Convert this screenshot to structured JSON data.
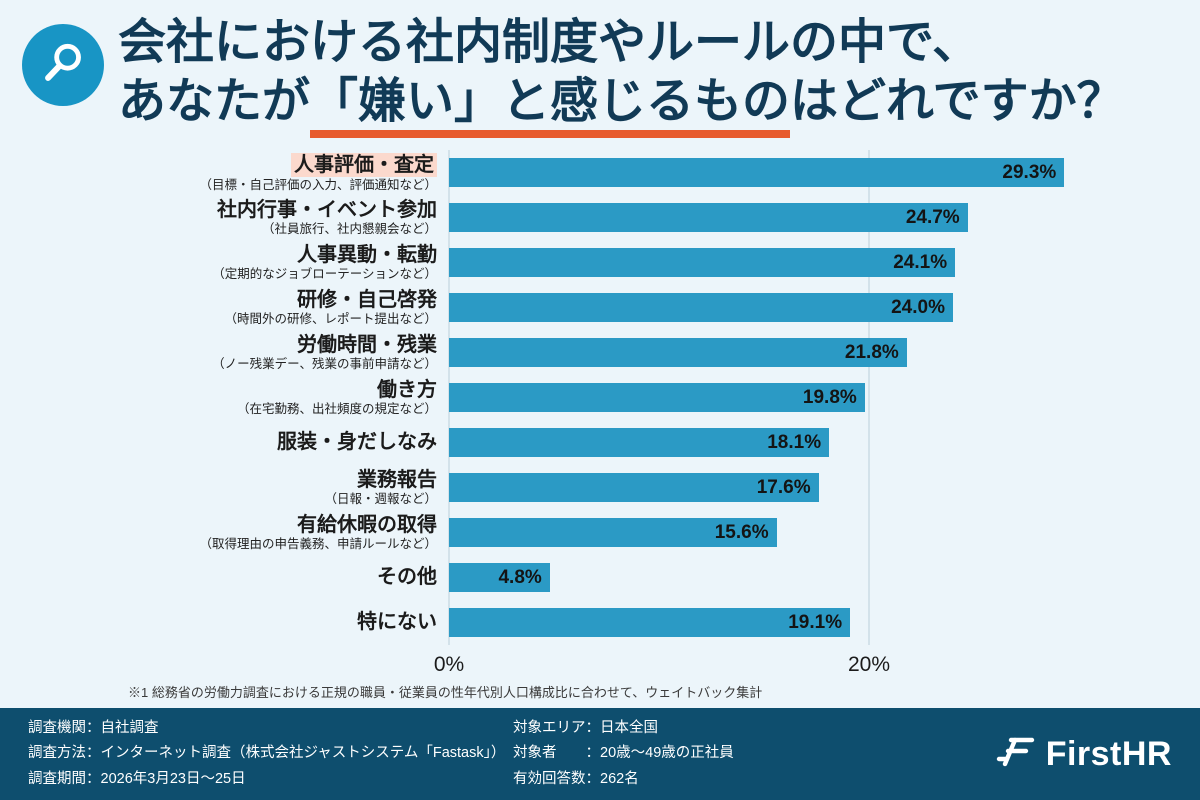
{
  "header": {
    "title_line1": "会社における社内制度やルールの中で、",
    "title_line2_prefix": "あなたが",
    "title_line2_emphasis": "「嫌い」と感じるもの",
    "title_line2_suffix": "はどれですか？"
  },
  "chart_data": {
    "type": "bar",
    "orientation": "horizontal",
    "title": "会社における社内制度やルールの中で、あなたが「嫌い」と感じるものはどれですか？",
    "categories": [
      "人事評価・査定",
      "社内行事・イベント参加",
      "人事異動・転勤",
      "研修・自己啓発",
      "労働時間・残業",
      "働き方",
      "服装・身だしなみ",
      "業務報告",
      "有給休暇の取得",
      "その他",
      "特にない"
    ],
    "sublabels": [
      "（目標・自己評価の入力、評価通知など）",
      "（社員旅行、社内懇親会など）",
      "（定期的なジョブローテーションなど）",
      "（時間外の研修、レポート提出など）",
      "（ノー残業デー、残業の事前申請など）",
      "（在宅勤務、出社頻度の規定など）",
      "",
      "（日報・週報など）",
      "（取得理由の申告義務、申請ルールなど）",
      "",
      ""
    ],
    "values": [
      29.3,
      24.7,
      24.1,
      24.0,
      21.8,
      19.8,
      18.1,
      17.6,
      15.6,
      4.8,
      19.1
    ],
    "value_labels": [
      "29.3%",
      "24.7%",
      "24.1%",
      "24.0%",
      "21.8%",
      "19.8%",
      "18.1%",
      "17.6%",
      "15.6%",
      "4.8%",
      "19.1%"
    ],
    "x_ticks": [
      {
        "value": 0,
        "label": "0%"
      },
      {
        "value": 20,
        "label": "20%"
      }
    ],
    "xlim": [
      0,
      31
    ],
    "highlight_index": 0,
    "legend": null,
    "grid": "vertical-at-ticks",
    "colors": {
      "bar": "#2B9AC5",
      "highlight_label_bg": "#FBD9CD",
      "value_text": "#141414",
      "title_text": "#113A56",
      "underline": "#E75B2E",
      "footer_bg": "#0E4E6E",
      "background": "#ECF5FA"
    }
  },
  "footnote": "※1 総務省の労働力調査における正規の職員・従業員の性年代別人口構成比に合わせて、ウェイトバック集計",
  "footer": {
    "left_lines": [
      "調査機関：自社調査",
      "調査方法：インターネット調査（株式会社ジャストシステム「Fastask」）",
      "調査期間：2026年3月23日〜25日"
    ],
    "right_lines": [
      "対象エリア：日本全国",
      "対象者　　：20歳〜49歳の正社員",
      "有効回答数：262名"
    ],
    "logo_text": "FirstHR"
  }
}
